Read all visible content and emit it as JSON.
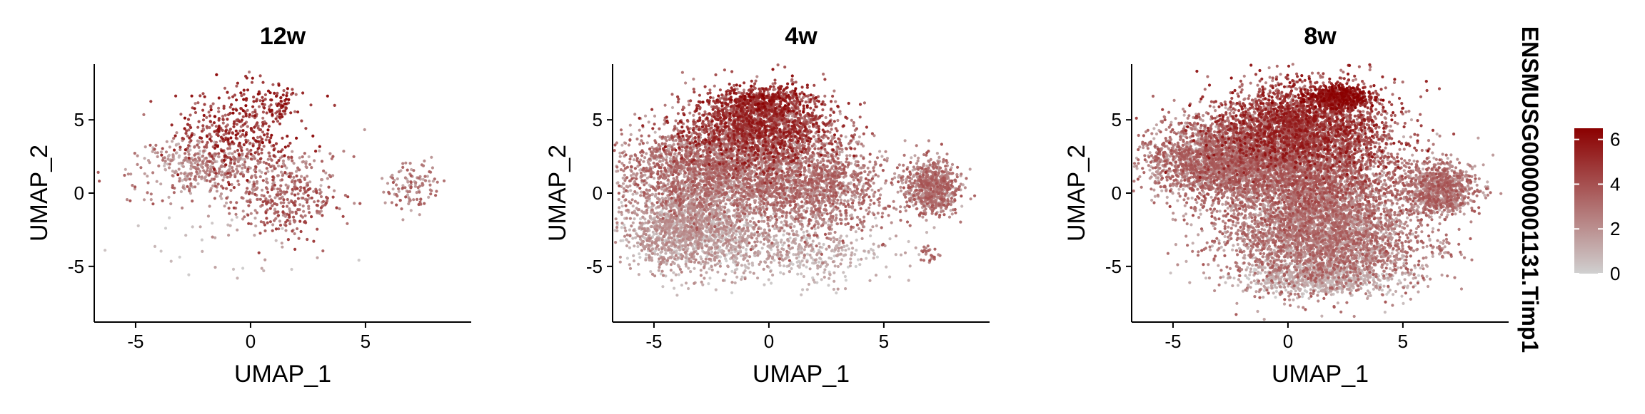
{
  "chart_data": [
    {
      "type": "scatter",
      "title": "12w",
      "xlabel": "UMAP_1",
      "ylabel": "UMAP_2",
      "xlim": [
        -6.8,
        9.6
      ],
      "ylim": [
        -8.8,
        8.8
      ],
      "xticks": [
        -5,
        0,
        5
      ],
      "yticks": [
        -5,
        0,
        5
      ],
      "grid": false,
      "clusters": [
        {
          "cx": -0.6,
          "cy": 4.2,
          "sx": 1.3,
          "sy": 1.4,
          "n": 380,
          "lo": 2.5,
          "hi": 6.2
        },
        {
          "cx": 0.8,
          "cy": 6.2,
          "sx": 0.9,
          "sy": 0.6,
          "n": 90,
          "lo": 3.5,
          "hi": 6.4
        },
        {
          "cx": -2.5,
          "cy": 2.1,
          "sx": 1.1,
          "sy": 0.7,
          "n": 200,
          "lo": 0.5,
          "hi": 3.0
        },
        {
          "cx": -0.5,
          "cy": 1.2,
          "sx": 2.2,
          "sy": 1.3,
          "n": 330,
          "lo": 0.8,
          "hi": 4.0
        },
        {
          "cx": 1.6,
          "cy": -0.6,
          "sx": 1.1,
          "sy": 1.3,
          "n": 260,
          "lo": 1.5,
          "hi": 4.8
        },
        {
          "cx": 7.0,
          "cy": 0.5,
          "sx": 0.6,
          "sy": 0.8,
          "n": 110,
          "lo": 1.0,
          "hi": 4.0
        },
        {
          "cx": -1.5,
          "cy": -3.5,
          "sx": 2.5,
          "sy": 1.6,
          "n": 35,
          "lo": 0.0,
          "hi": 1.5
        }
      ]
    },
    {
      "type": "scatter",
      "title": "4w",
      "xlabel": "UMAP_1",
      "ylabel": "UMAP_2",
      "xlim": [
        -6.8,
        9.6
      ],
      "ylim": [
        -8.8,
        8.8
      ],
      "xticks": [
        -5,
        0,
        5
      ],
      "yticks": [
        -5,
        0,
        5
      ],
      "grid": false,
      "clusters": [
        {
          "cx": -0.5,
          "cy": 4.5,
          "sx": 1.6,
          "sy": 1.3,
          "n": 1800,
          "lo": 2.0,
          "hi": 6.0
        },
        {
          "cx": -0.2,
          "cy": 6.3,
          "sx": 0.9,
          "sy": 0.5,
          "n": 300,
          "lo": 3.5,
          "hi": 6.5
        },
        {
          "cx": -2.5,
          "cy": 1.5,
          "sx": 2.0,
          "sy": 1.5,
          "n": 2200,
          "lo": 0.8,
          "hi": 4.0
        },
        {
          "cx": 1.8,
          "cy": 0.5,
          "sx": 1.6,
          "sy": 1.8,
          "n": 1500,
          "lo": 0.8,
          "hi": 4.0
        },
        {
          "cx": -3.5,
          "cy": -2.5,
          "sx": 1.5,
          "sy": 1.3,
          "n": 1600,
          "lo": 0.0,
          "hi": 2.5
        },
        {
          "cx": 1.0,
          "cy": -4.0,
          "sx": 2.0,
          "sy": 1.1,
          "n": 450,
          "lo": 0.0,
          "hi": 1.8
        },
        {
          "cx": 7.1,
          "cy": 0.4,
          "sx": 0.6,
          "sy": 0.9,
          "n": 700,
          "lo": 0.8,
          "hi": 4.0
        },
        {
          "cx": 7.0,
          "cy": -4.1,
          "sx": 0.25,
          "sy": 0.3,
          "n": 25,
          "lo": 2.0,
          "hi": 4.0
        }
      ]
    },
    {
      "type": "scatter",
      "title": "8w",
      "xlabel": "UMAP_1",
      "ylabel": "UMAP_2",
      "xlim": [
        -6.8,
        9.6
      ],
      "ylim": [
        -8.8,
        8.8
      ],
      "xticks": [
        -5,
        0,
        5
      ],
      "yticks": [
        -5,
        0,
        5
      ],
      "grid": false,
      "clusters": [
        {
          "cx": 0.5,
          "cy": 4.5,
          "sx": 2.0,
          "sy": 1.5,
          "n": 2700,
          "lo": 2.0,
          "hi": 6.0
        },
        {
          "cx": 2.2,
          "cy": 6.6,
          "sx": 0.7,
          "sy": 0.4,
          "n": 500,
          "lo": 4.5,
          "hi": 6.6
        },
        {
          "cx": -3.0,
          "cy": 2.2,
          "sx": 1.7,
          "sy": 1.3,
          "n": 2200,
          "lo": 0.8,
          "hi": 4.0
        },
        {
          "cx": 0.8,
          "cy": 1.2,
          "sx": 2.2,
          "sy": 1.6,
          "n": 2500,
          "lo": 1.0,
          "hi": 4.5
        },
        {
          "cx": 1.5,
          "cy": -3.0,
          "sx": 2.0,
          "sy": 1.8,
          "n": 3400,
          "lo": 0.5,
          "hi": 3.8
        },
        {
          "cx": 1.2,
          "cy": -5.8,
          "sx": 1.8,
          "sy": 0.5,
          "n": 600,
          "lo": 0.0,
          "hi": 1.5
        },
        {
          "cx": 6.5,
          "cy": 0.3,
          "sx": 0.8,
          "sy": 0.9,
          "n": 900,
          "lo": 0.8,
          "hi": 4.0
        },
        {
          "cx": 6.6,
          "cy": -3.9,
          "sx": 0.25,
          "sy": 0.35,
          "n": 30,
          "lo": 1.0,
          "hi": 4.0
        }
      ]
    }
  ],
  "legend": {
    "title": "ENSMUSG00000001131.Timp1",
    "min": 0,
    "max": 6.5,
    "ticks": [
      "6",
      "4",
      "2",
      "0"
    ],
    "tick_values": [
      6,
      4,
      2,
      0
    ],
    "color_low": "#d0d0d0",
    "color_high": "#8b0000",
    "placement": "right"
  }
}
